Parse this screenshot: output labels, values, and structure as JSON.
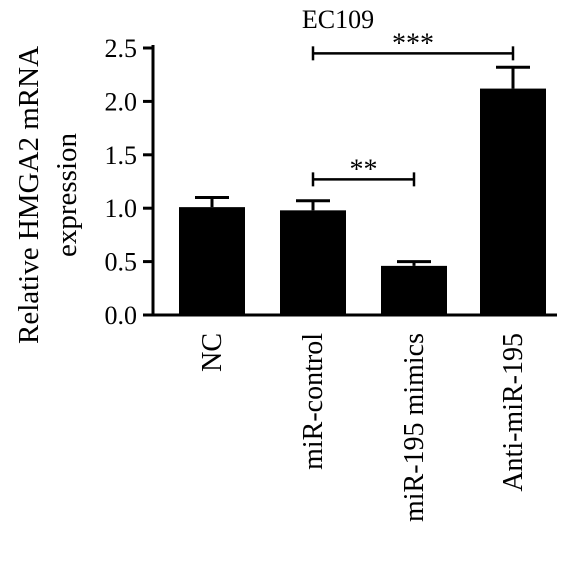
{
  "chart_data": {
    "type": "bar",
    "title": "EC109",
    "xlabel": "",
    "ylabel_line1": "Relative HMGA2 mRNA",
    "ylabel_line2": "expression",
    "categories": [
      "NC",
      "miR-control",
      "miR-195 mimics",
      "Anti-miR-195"
    ],
    "values": [
      1.01,
      0.98,
      0.46,
      2.12
    ],
    "errors": [
      0.09,
      0.09,
      0.04,
      0.2
    ],
    "ylim": [
      0,
      2.5
    ],
    "yticks": [
      "0.0",
      "0.5",
      "1.0",
      "1.5",
      "2.0",
      "2.5"
    ],
    "bar_color": "#000000",
    "grid": false,
    "significance": [
      {
        "from": 1,
        "to": 2,
        "label": "**",
        "y": 1.27
      },
      {
        "from": 1,
        "to": 3,
        "label": "***",
        "y": 2.45
      }
    ]
  }
}
